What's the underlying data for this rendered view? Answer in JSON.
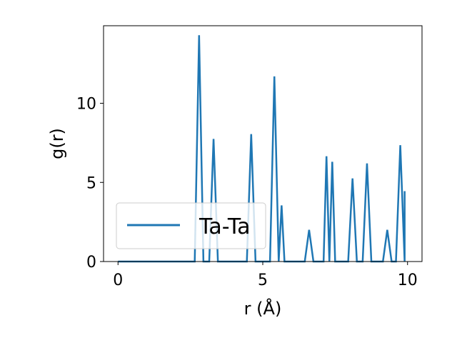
{
  "chart_data": {
    "type": "line",
    "xlabel": "r (Å)",
    "ylabel": "g(r)",
    "xlim": [
      -0.5,
      10.5
    ],
    "ylim": [
      0,
      14.9
    ],
    "xticks": [
      0,
      5,
      10
    ],
    "yticks": [
      0,
      5,
      10
    ],
    "grid": false,
    "legend_position": "lower-left",
    "series": [
      {
        "name": "Ta-Ta",
        "color": "#1f77b4",
        "x": [
          0,
          2.65,
          2.8,
          2.95,
          3.15,
          3.3,
          3.45,
          4.45,
          4.6,
          4.75,
          5.25,
          5.4,
          5.55,
          5.65,
          5.75,
          6.45,
          6.6,
          6.75,
          7.1,
          7.2,
          7.3,
          7.4,
          7.5,
          7.95,
          8.1,
          8.25,
          8.45,
          8.6,
          8.75,
          9.15,
          9.3,
          9.45,
          9.6,
          9.75,
          9.9,
          9.9
        ],
        "y": [
          0,
          0,
          14.3,
          0,
          0,
          7.75,
          0,
          0,
          8.05,
          0,
          0,
          11.7,
          0,
          3.55,
          0,
          0,
          2.0,
          0,
          0,
          6.65,
          0,
          6.3,
          0,
          0,
          5.25,
          0,
          0,
          6.2,
          0,
          0,
          2.0,
          0,
          0,
          7.35,
          0,
          4.45
        ]
      }
    ]
  }
}
